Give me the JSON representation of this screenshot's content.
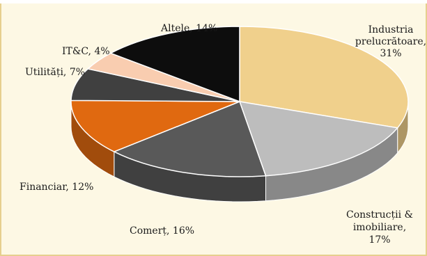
{
  "chart_data": {
    "type": "pie",
    "style": "3d",
    "slices": [
      {
        "label": "Industria prelucrătoare, 31%",
        "lines": [
          "Industria",
          "prelucrătoare,",
          "31%"
        ],
        "value": 31,
        "color": "#f0d08c"
      },
      {
        "label": "Construcții & imobiliare, 17%",
        "lines": [
          "Construcții &",
          "imobiliare,",
          "17%"
        ],
        "value": 17,
        "color": "#bdbdbd"
      },
      {
        "label": "Comerț, 16%",
        "lines": [
          "Comerț, 16%"
        ],
        "value": 16,
        "color": "#595959"
      },
      {
        "label": "Financiar, 12%",
        "lines": [
          "Financiar, 12%"
        ],
        "value": 12,
        "color": "#e06910"
      },
      {
        "label": "Utilități, 7%",
        "lines": [
          "Utilități, 7%"
        ],
        "value": 7,
        "color": "#404040"
      },
      {
        "label": "IT&C, 4%",
        "lines": [
          "IT&C, 4%"
        ],
        "value": 4,
        "color": "#f9cdb0"
      },
      {
        "label": "Altele, 14%",
        "lines": [
          "Altele, 14%"
        ],
        "value": 14,
        "color": "#0d0d0d"
      }
    ]
  }
}
